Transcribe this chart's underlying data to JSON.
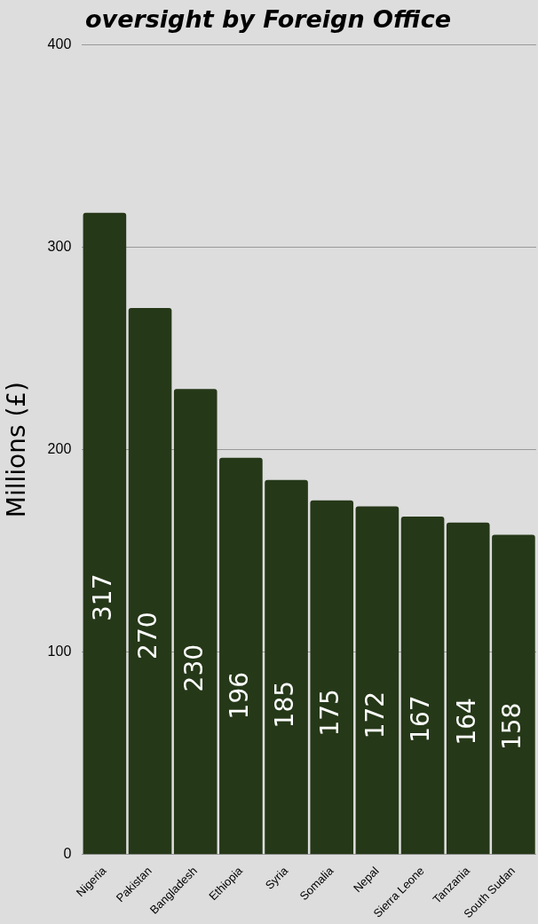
{
  "chart_data": {
    "type": "bar",
    "title": "oversight by Foreign Office",
    "ylabel": "Millions (£)",
    "categories": [
      "Nigeria",
      "Pakistan",
      "Bangladesh",
      "Ethiopia",
      "Syria",
      "Somalia",
      "Nepal",
      "Sierra Leone",
      "Tanzania",
      "South Sudan"
    ],
    "values": [
      317,
      270,
      230,
      196,
      185,
      175,
      172,
      167,
      164,
      158
    ],
    "color": "#253818",
    "ylim": [
      0,
      400
    ],
    "yticks": [
      0,
      100,
      200,
      300,
      400
    ],
    "grid": "y",
    "data_labels": true,
    "legend": false
  }
}
